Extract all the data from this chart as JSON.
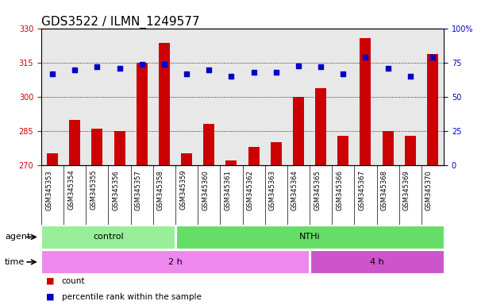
{
  "title": "GDS3522 / ILMN_1249577",
  "samples": [
    "GSM345353",
    "GSM345354",
    "GSM345355",
    "GSM345356",
    "GSM345357",
    "GSM345358",
    "GSM345359",
    "GSM345360",
    "GSM345361",
    "GSM345362",
    "GSM345363",
    "GSM345364",
    "GSM345365",
    "GSM345366",
    "GSM345367",
    "GSM345368",
    "GSM345369",
    "GSM345370"
  ],
  "counts": [
    275,
    290,
    286,
    285,
    315,
    324,
    275,
    288,
    272,
    278,
    280,
    300,
    304,
    283,
    326,
    285,
    283,
    319
  ],
  "percentiles": [
    67,
    70,
    72,
    71,
    74,
    74,
    67,
    70,
    65,
    68,
    68,
    73,
    72,
    67,
    79,
    71,
    65,
    79
  ],
  "ylim_left": [
    270,
    330
  ],
  "yticks_left": [
    270,
    285,
    300,
    315,
    330
  ],
  "ylim_right": [
    0,
    100
  ],
  "yticks_right": [
    0,
    25,
    50,
    75,
    100
  ],
  "yticklabels_right": [
    "0",
    "25",
    "50",
    "75",
    "100%"
  ],
  "bar_color": "#cc0000",
  "dot_color": "#0000cc",
  "left_tick_color": "#cc0000",
  "right_tick_color": "#0000cc",
  "grid_color": "#000000",
  "agent_groups": [
    {
      "label": "control",
      "start": 0,
      "end": 6,
      "color": "#99ee99"
    },
    {
      "label": "NTHi",
      "start": 6,
      "end": 18,
      "color": "#66dd66"
    }
  ],
  "time_groups": [
    {
      "label": "2 h",
      "start": 0,
      "end": 12,
      "color": "#ee88ee"
    },
    {
      "label": "4 h",
      "start": 12,
      "end": 18,
      "color": "#cc55cc"
    }
  ],
  "legend_bar_label": "count",
  "legend_dot_label": "percentile rank within the sample",
  "title_fontsize": 11,
  "tick_fontsize": 7,
  "label_fontsize": 8,
  "xtick_fontsize": 6,
  "bar_width": 0.5,
  "plot_bg_color": "#e8e8e8",
  "fig_bg_color": "#ffffff"
}
